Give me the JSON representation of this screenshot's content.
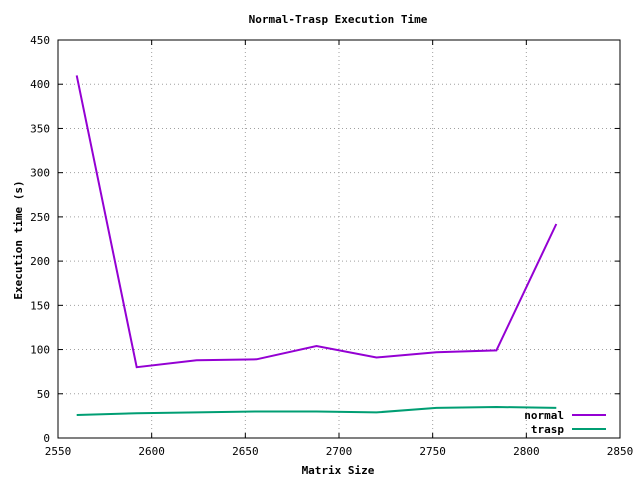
{
  "chart_data": {
    "type": "line",
    "title": "Normal-Trasp Execution Time",
    "xlabel": "Matrix Size",
    "ylabel": "Execution time (s)",
    "xlim": [
      2550,
      2850
    ],
    "ylim": [
      0,
      450
    ],
    "xticks": [
      "2550",
      "2600",
      "2650",
      "2700",
      "2750",
      "2800",
      "2850"
    ],
    "yticks": [
      "0",
      "50",
      "100",
      "150",
      "200",
      "250",
      "300",
      "350",
      "400",
      "450"
    ],
    "grid": true,
    "legend_position": "bottom-right",
    "series": [
      {
        "name": "normal",
        "color": "#9400d3",
        "x": [
          2560,
          2592,
          2624,
          2656,
          2688,
          2720,
          2752,
          2784,
          2816
        ],
        "y": [
          410,
          80,
          88,
          89,
          104,
          91,
          97,
          99,
          242
        ]
      },
      {
        "name": "trasp",
        "color": "#009e73",
        "x": [
          2560,
          2592,
          2624,
          2656,
          2688,
          2720,
          2752,
          2784,
          2816
        ],
        "y": [
          26,
          28,
          29,
          30,
          30,
          29,
          34,
          35,
          34
        ]
      }
    ]
  }
}
